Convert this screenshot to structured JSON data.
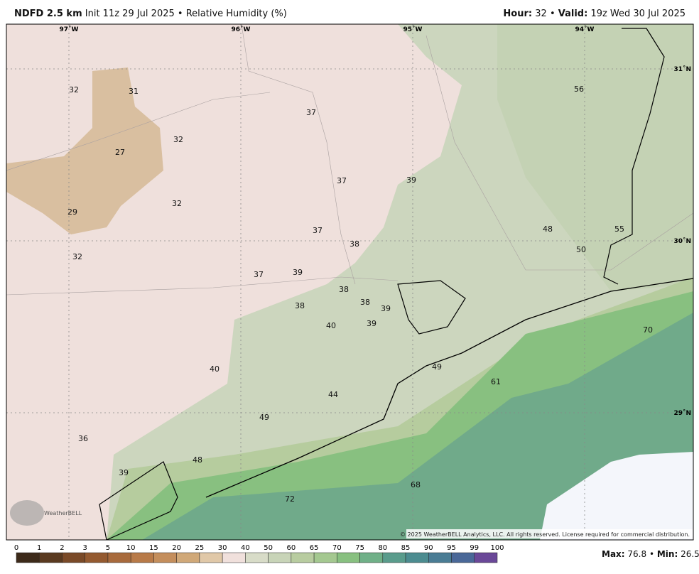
{
  "header": {
    "model": "NDFD 2.5 km",
    "init": "Init 11z 29 Jul 2025",
    "separator": "•",
    "field": "Relative Humidity (%)",
    "hour_label": "Hour:",
    "hour": 32,
    "valid_label": "Valid:",
    "valid": "19z Wed 30 Jul 2025"
  },
  "map": {
    "lon_labels": [
      "97˚W",
      "96˚W",
      "95˚W",
      "94˚W"
    ],
    "lat_labels": [
      "31˚N",
      "30˚N",
      "29˚N"
    ],
    "values": [
      32,
      31,
      37,
      56,
      32,
      27,
      37,
      39,
      29,
      32,
      37,
      38,
      48,
      55,
      50,
      32,
      37,
      39,
      38,
      38,
      38,
      39,
      40,
      39,
      70,
      49,
      40,
      61,
      44,
      49,
      36,
      48,
      39,
      68,
      72
    ],
    "copyright": "© 2025 WeatherBELL Analytics, LLC. All rights reserved. License required for commercial distribution.",
    "logo": "WeatherBELL"
  },
  "colorbar": {
    "labels": [
      0,
      1,
      2,
      3,
      5,
      10,
      15,
      20,
      25,
      30,
      40,
      50,
      60,
      65,
      70,
      75,
      80,
      85,
      90,
      95,
      99,
      100
    ],
    "colors": [
      "#3d2a1a",
      "#5a3a20",
      "#7a4a28",
      "#945a30",
      "#a86a3c",
      "#b87a48",
      "#c48e5c",
      "#d0a878",
      "#e0c8a8",
      "#f0e0dc",
      "#d8dcc8",
      "#c8d4b8",
      "#b8cca0",
      "#a4c890",
      "#88c080",
      "#70b088",
      "#5a9c8c",
      "#4c8c90",
      "#4a7c94",
      "#4a6898",
      "#6a4898"
    ]
  },
  "footer": {
    "max_label": "Max:",
    "max": 76.8,
    "min_label": "Min:",
    "min": 26.5
  }
}
